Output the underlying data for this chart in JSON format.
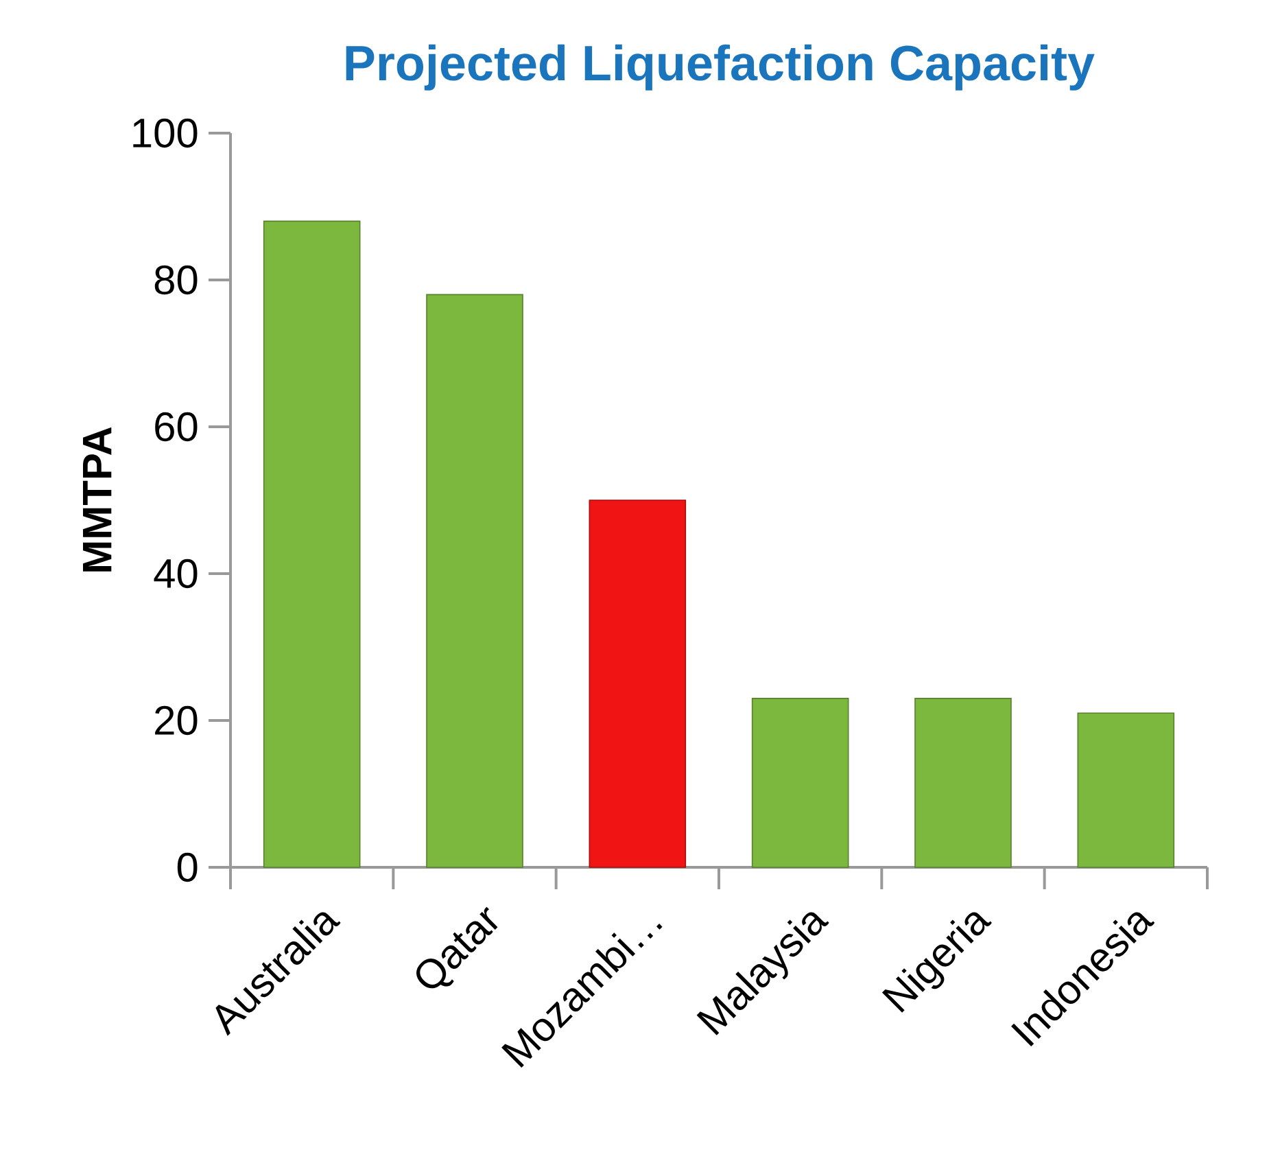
{
  "chart_data": {
    "type": "bar",
    "title": "Projected Liquefaction Capacity",
    "ylabel": "MMTPA",
    "categories": [
      "Australia",
      "Qatar",
      "Mozambi…",
      "Malaysia",
      "Nigeria",
      "Indonesia"
    ],
    "values": [
      88,
      78,
      50,
      23,
      23,
      21
    ],
    "colors": [
      "#7cb83e",
      "#7cb83e",
      "#f01414",
      "#7cb83e",
      "#7cb83e",
      "#7cb83e"
    ],
    "ylim": [
      0,
      100
    ],
    "yticks": [
      0,
      20,
      40,
      60,
      80,
      100
    ]
  }
}
